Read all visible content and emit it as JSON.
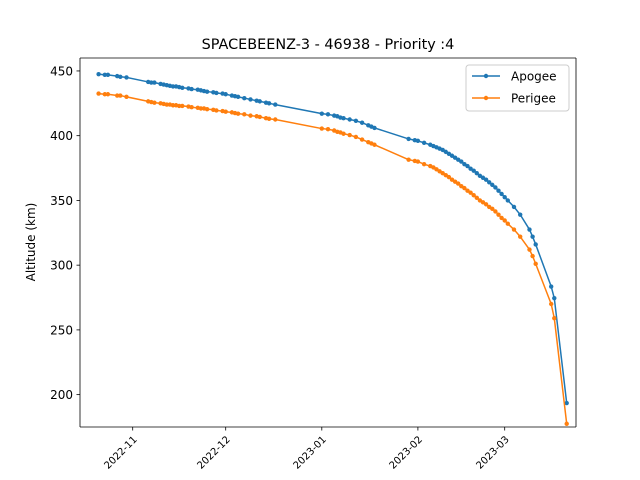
{
  "chart_data": {
    "type": "line",
    "title": "SPACEBEENZ-3 - 46938 - Priority :4",
    "xlabel": "",
    "ylabel": "Altitude (km)",
    "x_type": "date",
    "xlim": [
      "2022-10-15",
      "2023-03-24"
    ],
    "ylim": [
      175,
      460
    ],
    "x_ticks": [
      "2022-11",
      "2022-12",
      "2023-01",
      "2023-02",
      "2023-03"
    ],
    "y_ticks": [
      200,
      250,
      300,
      350,
      400,
      450
    ],
    "grid": false,
    "legend": "top-right",
    "series": [
      {
        "name": "Apogee",
        "color": "#1f77b4",
        "points": [
          [
            "2022-10-21",
            447.5
          ],
          [
            "2022-10-23",
            447
          ],
          [
            "2022-10-24",
            447
          ],
          [
            "2022-10-27",
            446
          ],
          [
            "2022-10-28",
            445.5
          ],
          [
            "2022-10-30",
            445
          ],
          [
            "2022-11-06",
            441.5
          ],
          [
            "2022-11-07",
            441
          ],
          [
            "2022-11-08",
            441
          ],
          [
            "2022-11-10",
            440
          ],
          [
            "2022-11-11",
            439.5
          ],
          [
            "2022-11-12",
            439
          ],
          [
            "2022-11-13",
            438.5
          ],
          [
            "2022-11-14",
            438
          ],
          [
            "2022-11-15",
            438
          ],
          [
            "2022-11-16",
            437.5
          ],
          [
            "2022-11-17",
            437
          ],
          [
            "2022-11-19",
            436.5
          ],
          [
            "2022-11-20",
            436
          ],
          [
            "2022-11-22",
            435.5
          ],
          [
            "2022-11-23",
            435
          ],
          [
            "2022-11-24",
            434.5
          ],
          [
            "2022-11-25",
            434
          ],
          [
            "2022-11-27",
            433.5
          ],
          [
            "2022-11-28",
            433
          ],
          [
            "2022-11-30",
            432.5
          ],
          [
            "2022-12-01",
            432
          ],
          [
            "2022-12-03",
            431
          ],
          [
            "2022-12-04",
            430.5
          ],
          [
            "2022-12-05",
            430
          ],
          [
            "2022-12-07",
            429
          ],
          [
            "2022-12-09",
            428
          ],
          [
            "2022-12-11",
            427
          ],
          [
            "2022-12-12",
            426.5
          ],
          [
            "2022-12-14",
            425.5
          ],
          [
            "2022-12-15",
            425
          ],
          [
            "2022-12-17",
            424
          ],
          [
            "2023-01-01",
            417
          ],
          [
            "2023-01-03",
            416.5
          ],
          [
            "2023-01-05",
            415.5
          ],
          [
            "2023-01-06",
            415
          ],
          [
            "2023-01-07",
            414
          ],
          [
            "2023-01-08",
            413.5
          ],
          [
            "2023-01-10",
            412.5
          ],
          [
            "2023-01-12",
            411.5
          ],
          [
            "2023-01-14",
            410
          ],
          [
            "2023-01-16",
            408
          ],
          [
            "2023-01-17",
            407
          ],
          [
            "2023-01-18",
            406
          ],
          [
            "2023-01-29",
            397.5
          ],
          [
            "2023-01-31",
            396.5
          ],
          [
            "2023-02-01",
            396
          ],
          [
            "2023-02-03",
            394.5
          ],
          [
            "2023-02-05",
            393
          ],
          [
            "2023-02-06",
            392
          ],
          [
            "2023-02-07",
            391
          ],
          [
            "2023-02-08",
            390
          ],
          [
            "2023-02-09",
            389
          ],
          [
            "2023-02-10",
            387.5
          ],
          [
            "2023-02-11",
            386
          ],
          [
            "2023-02-12",
            384.5
          ],
          [
            "2023-02-13",
            383
          ],
          [
            "2023-02-14",
            381.5
          ],
          [
            "2023-02-15",
            380
          ],
          [
            "2023-02-16",
            378
          ],
          [
            "2023-02-17",
            376.5
          ],
          [
            "2023-02-18",
            374.5
          ],
          [
            "2023-02-19",
            373
          ],
          [
            "2023-02-20",
            371
          ],
          [
            "2023-02-21",
            369
          ],
          [
            "2023-02-22",
            367.5
          ],
          [
            "2023-02-23",
            366
          ],
          [
            "2023-02-24",
            364
          ],
          [
            "2023-02-25",
            362
          ],
          [
            "2023-02-26",
            360
          ],
          [
            "2023-02-27",
            357.5
          ],
          [
            "2023-02-28",
            355
          ],
          [
            "2023-03-01",
            352.5
          ],
          [
            "2023-03-02",
            350
          ],
          [
            "2023-03-04",
            345
          ],
          [
            "2023-03-06",
            339
          ],
          [
            "2023-03-09",
            327.5
          ],
          [
            "2023-03-10",
            322
          ],
          [
            "2023-03-11",
            316
          ],
          [
            "2023-03-16",
            283.5
          ],
          [
            "2023-03-17",
            274.5
          ],
          [
            "2023-03-21",
            193.5
          ]
        ]
      },
      {
        "name": "Perigee",
        "color": "#ff7f0e",
        "points": [
          [
            "2022-10-21",
            432.5
          ],
          [
            "2022-10-23",
            432
          ],
          [
            "2022-10-24",
            432
          ],
          [
            "2022-10-27",
            431
          ],
          [
            "2022-10-28",
            431
          ],
          [
            "2022-10-30",
            430
          ],
          [
            "2022-11-06",
            426.5
          ],
          [
            "2022-11-07",
            426
          ],
          [
            "2022-11-08",
            425.5
          ],
          [
            "2022-11-10",
            425
          ],
          [
            "2022-11-11",
            424.5
          ],
          [
            "2022-11-12",
            424
          ],
          [
            "2022-11-13",
            424
          ],
          [
            "2022-11-14",
            423.5
          ],
          [
            "2022-11-15",
            423.5
          ],
          [
            "2022-11-16",
            423
          ],
          [
            "2022-11-17",
            423
          ],
          [
            "2022-11-19",
            422.5
          ],
          [
            "2022-11-20",
            422
          ],
          [
            "2022-11-22",
            421.5
          ],
          [
            "2022-11-23",
            421
          ],
          [
            "2022-11-24",
            421
          ],
          [
            "2022-11-25",
            420.5
          ],
          [
            "2022-11-27",
            420
          ],
          [
            "2022-11-28",
            419.5
          ],
          [
            "2022-11-30",
            419
          ],
          [
            "2022-12-01",
            418.5
          ],
          [
            "2022-12-03",
            418
          ],
          [
            "2022-12-04",
            417.5
          ],
          [
            "2022-12-05",
            417
          ],
          [
            "2022-12-07",
            416.5
          ],
          [
            "2022-12-09",
            415.5
          ],
          [
            "2022-12-11",
            415
          ],
          [
            "2022-12-12",
            414.5
          ],
          [
            "2022-12-14",
            413.5
          ],
          [
            "2022-12-15",
            413
          ],
          [
            "2022-12-17",
            412.5
          ],
          [
            "2023-01-01",
            405.5
          ],
          [
            "2023-01-03",
            405
          ],
          [
            "2023-01-05",
            404
          ],
          [
            "2023-01-06",
            403
          ],
          [
            "2023-01-07",
            402.5
          ],
          [
            "2023-01-08",
            401.5
          ],
          [
            "2023-01-10",
            400.5
          ],
          [
            "2023-01-12",
            399
          ],
          [
            "2023-01-14",
            397
          ],
          [
            "2023-01-16",
            395
          ],
          [
            "2023-01-17",
            394
          ],
          [
            "2023-01-18",
            393
          ],
          [
            "2023-01-29",
            381.5
          ],
          [
            "2023-01-31",
            380.5
          ],
          [
            "2023-02-01",
            380
          ],
          [
            "2023-02-03",
            378
          ],
          [
            "2023-02-05",
            376.5
          ],
          [
            "2023-02-06",
            375.5
          ],
          [
            "2023-02-07",
            374
          ],
          [
            "2023-02-08",
            372.5
          ],
          [
            "2023-02-09",
            371
          ],
          [
            "2023-02-10",
            369.5
          ],
          [
            "2023-02-11",
            368
          ],
          [
            "2023-02-12",
            366
          ],
          [
            "2023-02-13",
            364.5
          ],
          [
            "2023-02-14",
            363
          ],
          [
            "2023-02-15",
            361
          ],
          [
            "2023-02-16",
            359.5
          ],
          [
            "2023-02-17",
            357.5
          ],
          [
            "2023-02-18",
            356
          ],
          [
            "2023-02-19",
            354
          ],
          [
            "2023-02-20",
            352
          ],
          [
            "2023-02-21",
            350
          ],
          [
            "2023-02-22",
            348.5
          ],
          [
            "2023-02-23",
            347
          ],
          [
            "2023-02-24",
            345
          ],
          [
            "2023-02-25",
            343.5
          ],
          [
            "2023-02-26",
            341.5
          ],
          [
            "2023-02-27",
            339
          ],
          [
            "2023-02-28",
            336.5
          ],
          [
            "2023-03-01",
            334.5
          ],
          [
            "2023-03-02",
            332
          ],
          [
            "2023-03-04",
            327.5
          ],
          [
            "2023-03-06",
            322
          ],
          [
            "2023-03-09",
            312
          ],
          [
            "2023-03-10",
            307
          ],
          [
            "2023-03-11",
            301
          ],
          [
            "2023-03-16",
            270
          ],
          [
            "2023-03-17",
            259
          ],
          [
            "2023-03-21",
            177.5
          ]
        ]
      }
    ]
  }
}
